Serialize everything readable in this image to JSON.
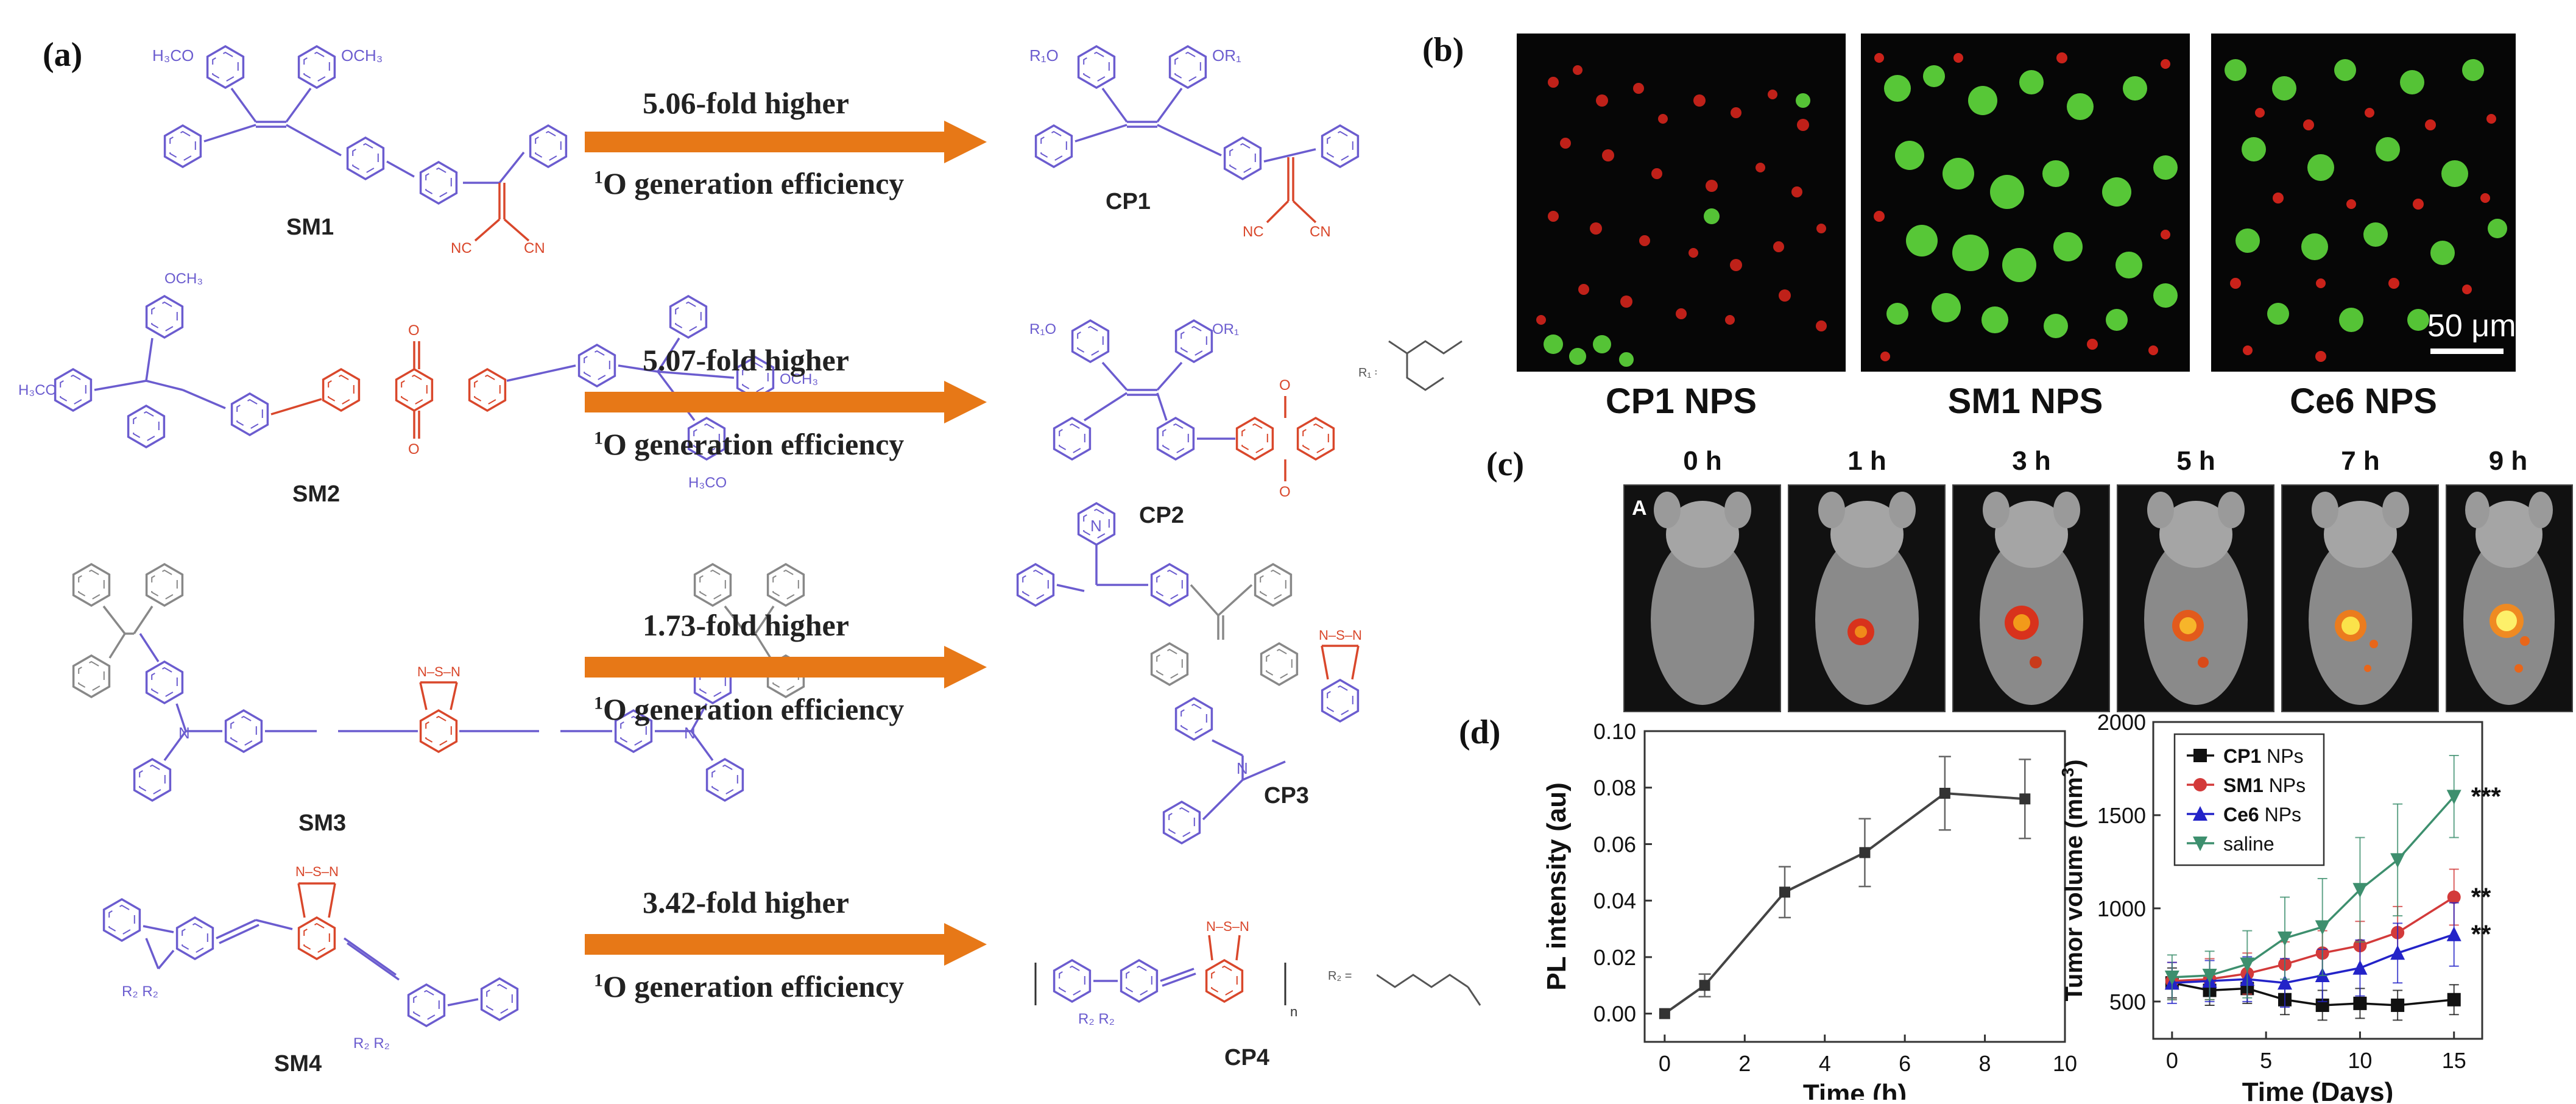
{
  "panels": {
    "a": "(a)",
    "b": "(b)",
    "c": "(c)",
    "d": "(d)"
  },
  "panel_a": {
    "rows": [
      {
        "small": "SM1",
        "polymer": "CP1",
        "fold": "5.06-fold higher",
        "generation": "O generation efficiency",
        "sup": "1"
      },
      {
        "small": "SM2",
        "polymer": "CP2",
        "fold": "5.07-fold higher",
        "generation": "O generation efficiency",
        "sup": "1"
      },
      {
        "small": "SM3",
        "polymer": "CP3",
        "fold": "1.73-fold higher",
        "generation": "O generation efficiency",
        "sup": "1"
      },
      {
        "small": "SM4",
        "polymer": "CP4",
        "fold": "3.42-fold higher",
        "generation": "O generation efficiency",
        "sup": "1"
      }
    ],
    "substituents": {
      "methoxy": "OCH3",
      "nitrile": "CN",
      "r1": "R1",
      "r2": "R2",
      "n": "n"
    },
    "colors": {
      "blue": "#6b5ccf",
      "red": "#d9472b",
      "gray": "#777777",
      "arrow": "#e77817"
    }
  },
  "panel_b": {
    "captions": [
      "CP1 NPS",
      "SM1 NPS",
      "Ce6 NPS"
    ],
    "scale_bar": "50 μm"
  },
  "panel_c": {
    "times": [
      "0 h",
      "1 h",
      "3 h",
      "5 h",
      "7 h",
      "9 h"
    ],
    "marker": "A"
  },
  "chart_data": [
    {
      "type": "line",
      "x": [
        0,
        1,
        3,
        5,
        7,
        9
      ],
      "series": [
        {
          "values": [
            0.0,
            0.01,
            0.043,
            0.057,
            0.078,
            0.076
          ],
          "errors": [
            0.0,
            0.004,
            0.009,
            0.012,
            0.013,
            0.014
          ]
        }
      ],
      "xlabel": "Time (h)",
      "ylabel": "PL intensity (au)",
      "xlim": [
        -0.5,
        10
      ],
      "ylim": [
        -0.01,
        0.1
      ],
      "xticks": [
        0,
        2,
        4,
        6,
        8,
        10
      ],
      "yticks": [
        0.0,
        0.02,
        0.04,
        0.06,
        0.08,
        0.1
      ],
      "ytick_labels": [
        "0.00",
        "0.02",
        "0.04",
        "0.06",
        "0.08",
        "0.10"
      ]
    },
    {
      "type": "line",
      "x": [
        0,
        2,
        4,
        6,
        8,
        10,
        12,
        15
      ],
      "series": [
        {
          "name": "CP1 NPs",
          "name_bold": "CP1",
          "name_rest": " NPs",
          "color": "#111111",
          "marker": "square",
          "values": [
            600,
            560,
            570,
            510,
            480,
            490,
            480,
            510
          ],
          "errors": [
            80,
            80,
            80,
            80,
            80,
            80,
            80,
            80
          ]
        },
        {
          "name": "SM1 NPs",
          "name_bold": "SM1",
          "name_rest": " NPs",
          "color": "#d33a3a",
          "marker": "circle",
          "values": [
            610,
            620,
            650,
            700,
            760,
            800,
            870,
            1060
          ],
          "errors": [
            100,
            110,
            110,
            120,
            120,
            130,
            140,
            150
          ]
        },
        {
          "name": "Ce6 NPs",
          "name_bold": "Ce6",
          "name_rest": " NPs",
          "color": "#2323c8",
          "marker": "triangle",
          "values": [
            600,
            610,
            620,
            600,
            640,
            680,
            760,
            860
          ],
          "errors": [
            110,
            110,
            120,
            130,
            140,
            150,
            160,
            170
          ]
        },
        {
          "name": "saline",
          "name_bold": "",
          "name_rest": "saline",
          "color": "#3d8f6e",
          "marker": "triangle-down",
          "values": [
            630,
            640,
            700,
            840,
            900,
            1100,
            1260,
            1600
          ],
          "errors": [
            120,
            130,
            180,
            220,
            260,
            280,
            300,
            220
          ]
        }
      ],
      "significance": [
        "*",
        "**",
        "**",
        "***"
      ],
      "xlabel": "Time (Days)",
      "ylabel": "Tumor volume (mm",
      "ylabel_sup": "3",
      "ylabel_end": ")",
      "xlim": [
        -1,
        16.5
      ],
      "ylim": [
        300,
        2000
      ],
      "xticks": [
        0,
        5,
        10,
        15
      ],
      "yticks": [
        500,
        1000,
        1500,
        2000
      ]
    }
  ]
}
